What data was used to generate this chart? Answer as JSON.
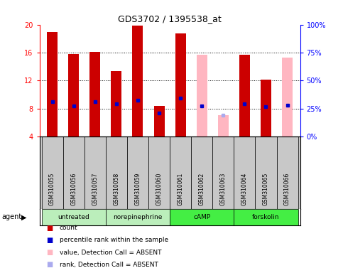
{
  "title": "GDS3702 / 1395538_at",
  "samples": [
    "GSM310055",
    "GSM310056",
    "GSM310057",
    "GSM310058",
    "GSM310059",
    "GSM310060",
    "GSM310061",
    "GSM310062",
    "GSM310063",
    "GSM310064",
    "GSM310065",
    "GSM310066"
  ],
  "count_values": [
    18.9,
    15.8,
    16.1,
    13.4,
    19.9,
    8.4,
    18.7,
    null,
    null,
    15.7,
    12.1,
    null
  ],
  "count_absent_values": [
    null,
    null,
    null,
    null,
    null,
    null,
    null,
    15.7,
    7.0,
    null,
    null,
    15.3
  ],
  "percentile_values": [
    9.0,
    8.4,
    9.0,
    8.7,
    9.2,
    7.4,
    9.5,
    8.4,
    null,
    8.7,
    8.3,
    8.5
  ],
  "percentile_absent_values": [
    null,
    null,
    null,
    null,
    null,
    null,
    null,
    null,
    7.0,
    null,
    null,
    null
  ],
  "ylim_left": [
    4,
    20
  ],
  "yticks_left": [
    4,
    8,
    12,
    16,
    20
  ],
  "yticks_right": [
    0,
    25,
    50,
    75,
    100
  ],
  "bar_width": 0.5,
  "bar_color_red": "#CC0000",
  "bar_color_pink": "#FFB6C1",
  "dot_color_blue": "#0000CC",
  "dot_color_lightblue": "#AAAAEE",
  "label_bg": "#C8C8C8",
  "groups": [
    {
      "label": "untreated",
      "start": 0,
      "end": 2,
      "color": "#BBEEBB"
    },
    {
      "label": "norepinephrine",
      "start": 3,
      "end": 5,
      "color": "#BBEEBB"
    },
    {
      "label": "cAMP",
      "start": 6,
      "end": 8,
      "color": "#44EE44"
    },
    {
      "label": "forskolin",
      "start": 9,
      "end": 11,
      "color": "#44EE44"
    }
  ]
}
